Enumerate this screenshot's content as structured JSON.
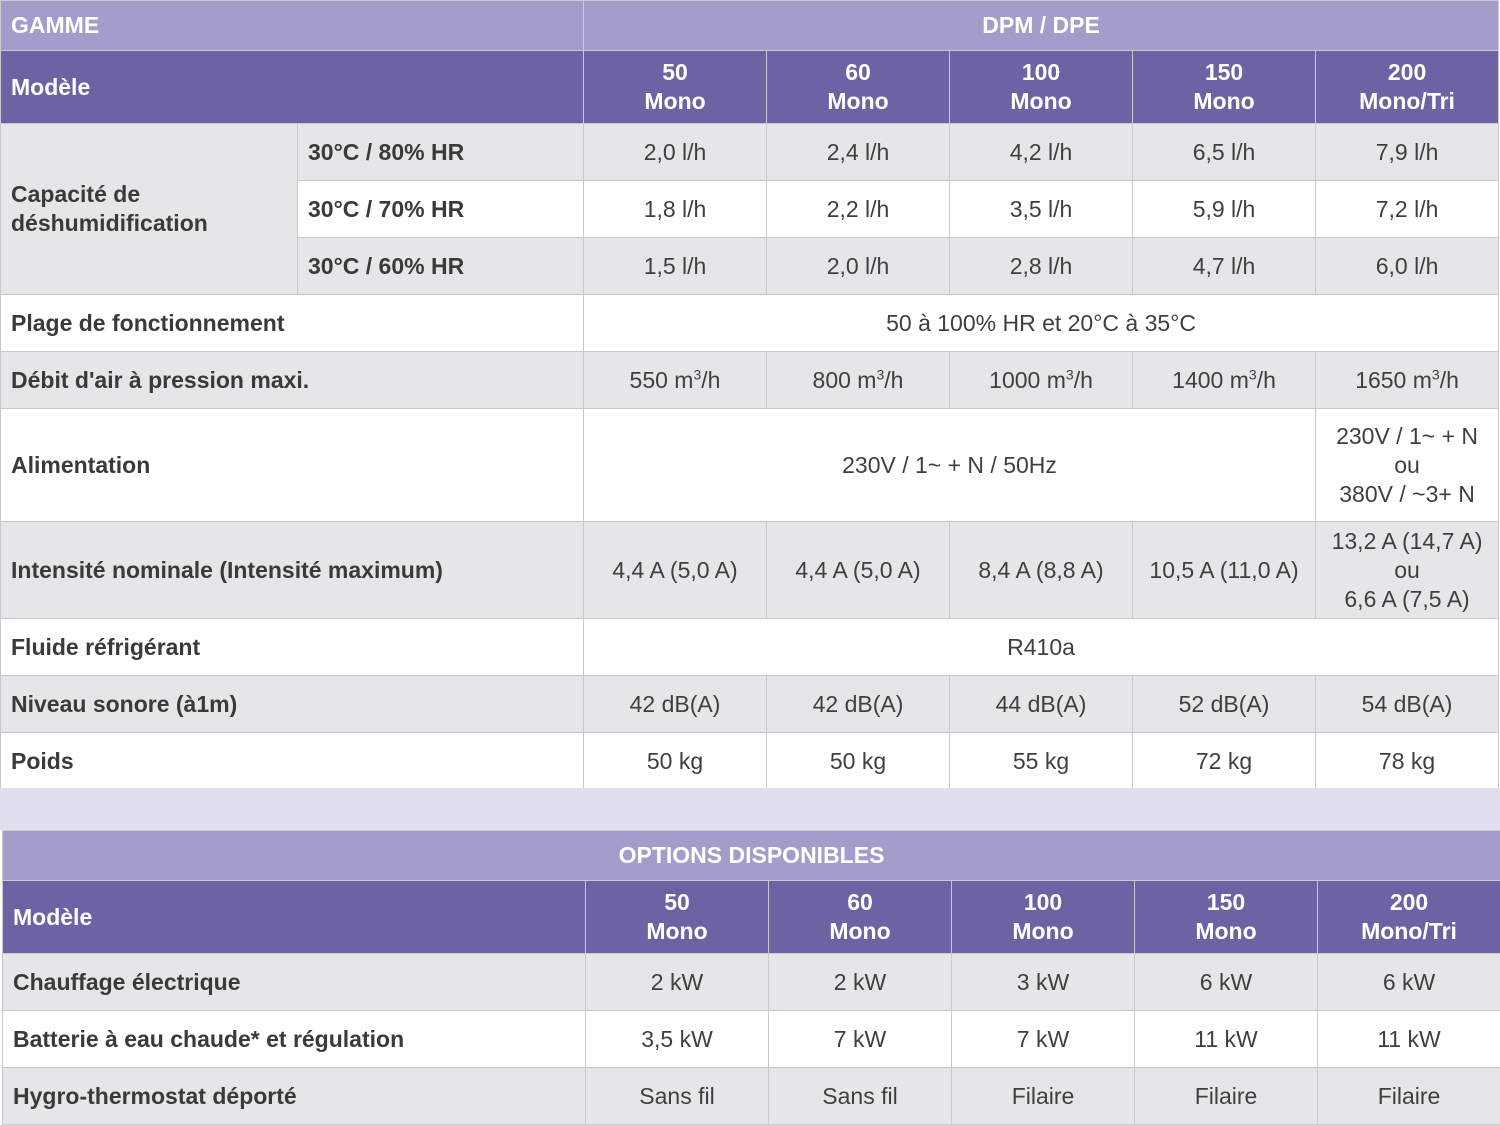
{
  "table1": {
    "range_label": "GAMME",
    "range_value": "DPM / DPE",
    "model_label": "Modèle",
    "models": [
      {
        "num": "50",
        "type": "Mono"
      },
      {
        "num": "60",
        "type": "Mono"
      },
      {
        "num": "100",
        "type": "Mono"
      },
      {
        "num": "150",
        "type": "Mono"
      },
      {
        "num": "200",
        "type": "Mono/Tri"
      }
    ],
    "dehum": {
      "label_line1": "Capacité de",
      "label_line2": "déshumidification",
      "rows": [
        {
          "cond": "30°C / 80% HR",
          "values": [
            "2,0 l/h",
            "2,4 l/h",
            "4,2 l/h",
            "6,5 l/h",
            "7,9 l/h"
          ]
        },
        {
          "cond": "30°C / 70% HR",
          "values": [
            "1,8 l/h",
            "2,2 l/h",
            "3,5 l/h",
            "5,9 l/h",
            "7,2 l/h"
          ]
        },
        {
          "cond": "30°C / 60% HR",
          "values": [
            "1,5 l/h",
            "2,0 l/h",
            "2,8 l/h",
            "4,7 l/h",
            "6,0 l/h"
          ]
        }
      ]
    },
    "range_op": {
      "label": "Plage de fonctionnement",
      "value": "50 à 100% HR et 20°C à 35°C"
    },
    "airflow": {
      "label": "Débit d'air à pression maxi.",
      "values": [
        "550",
        "800",
        "1000",
        "1400",
        "1650"
      ],
      "unit": " m",
      "unit_sup": "3",
      "unit_tail": "/h"
    },
    "power": {
      "label": "Alimentation",
      "value_main": "230V / 1~ + N / 50Hz",
      "value_last_1": "230V / 1~ + N",
      "value_last_2": "ou",
      "value_last_3": "380V / ~3+ N"
    },
    "current": {
      "label": "Intensité nominale (Intensité maximum)",
      "values": [
        "4,4 A (5,0 A)",
        "4,4 A (5,0 A)",
        "8,4 A (8,8 A)",
        "10,5 A (11,0 A)"
      ],
      "value_last_1": "13,2 A (14,7 A)",
      "value_last_2": "ou",
      "value_last_3": "6,6 A (7,5 A)"
    },
    "fluid": {
      "label": "Fluide réfrigérant",
      "value": "R410a"
    },
    "noise": {
      "label": "Niveau sonore (à1m)",
      "values": [
        "42 dB(A)",
        "42 dB(A)",
        "44 dB(A)",
        "52 dB(A)",
        "54 dB(A)"
      ]
    },
    "weight": {
      "label": "Poids",
      "values": [
        "50 kg",
        "50 kg",
        "55 kg",
        "72 kg",
        "78 kg"
      ]
    }
  },
  "table2": {
    "title": "OPTIONS DISPONIBLES",
    "model_label": "Modèle",
    "models": [
      {
        "num": "50",
        "type": "Mono"
      },
      {
        "num": "60",
        "type": "Mono"
      },
      {
        "num": "100",
        "type": "Mono"
      },
      {
        "num": "150",
        "type": "Mono"
      },
      {
        "num": "200",
        "type": "Mono/Tri"
      }
    ],
    "rows": [
      {
        "label": "Chauffage électrique",
        "values": [
          "2 kW",
          "2 kW",
          "3 kW",
          "6 kW",
          "6 kW"
        ]
      },
      {
        "label": "Batterie à eau chaude* et régulation",
        "values": [
          "3,5 kW",
          "7 kW",
          "7 kW",
          "11 kW",
          "11 kW"
        ]
      },
      {
        "label": "Hygro-thermostat déporté",
        "values": [
          "Sans fil",
          "Sans fil",
          "Filaire",
          "Filaire",
          "Filaire"
        ]
      }
    ]
  },
  "colors": {
    "header_light": "#a39dcb",
    "header_dark": "#6d62a3",
    "row_grey": "#e6e6e8",
    "separator": "#e1dfee"
  }
}
